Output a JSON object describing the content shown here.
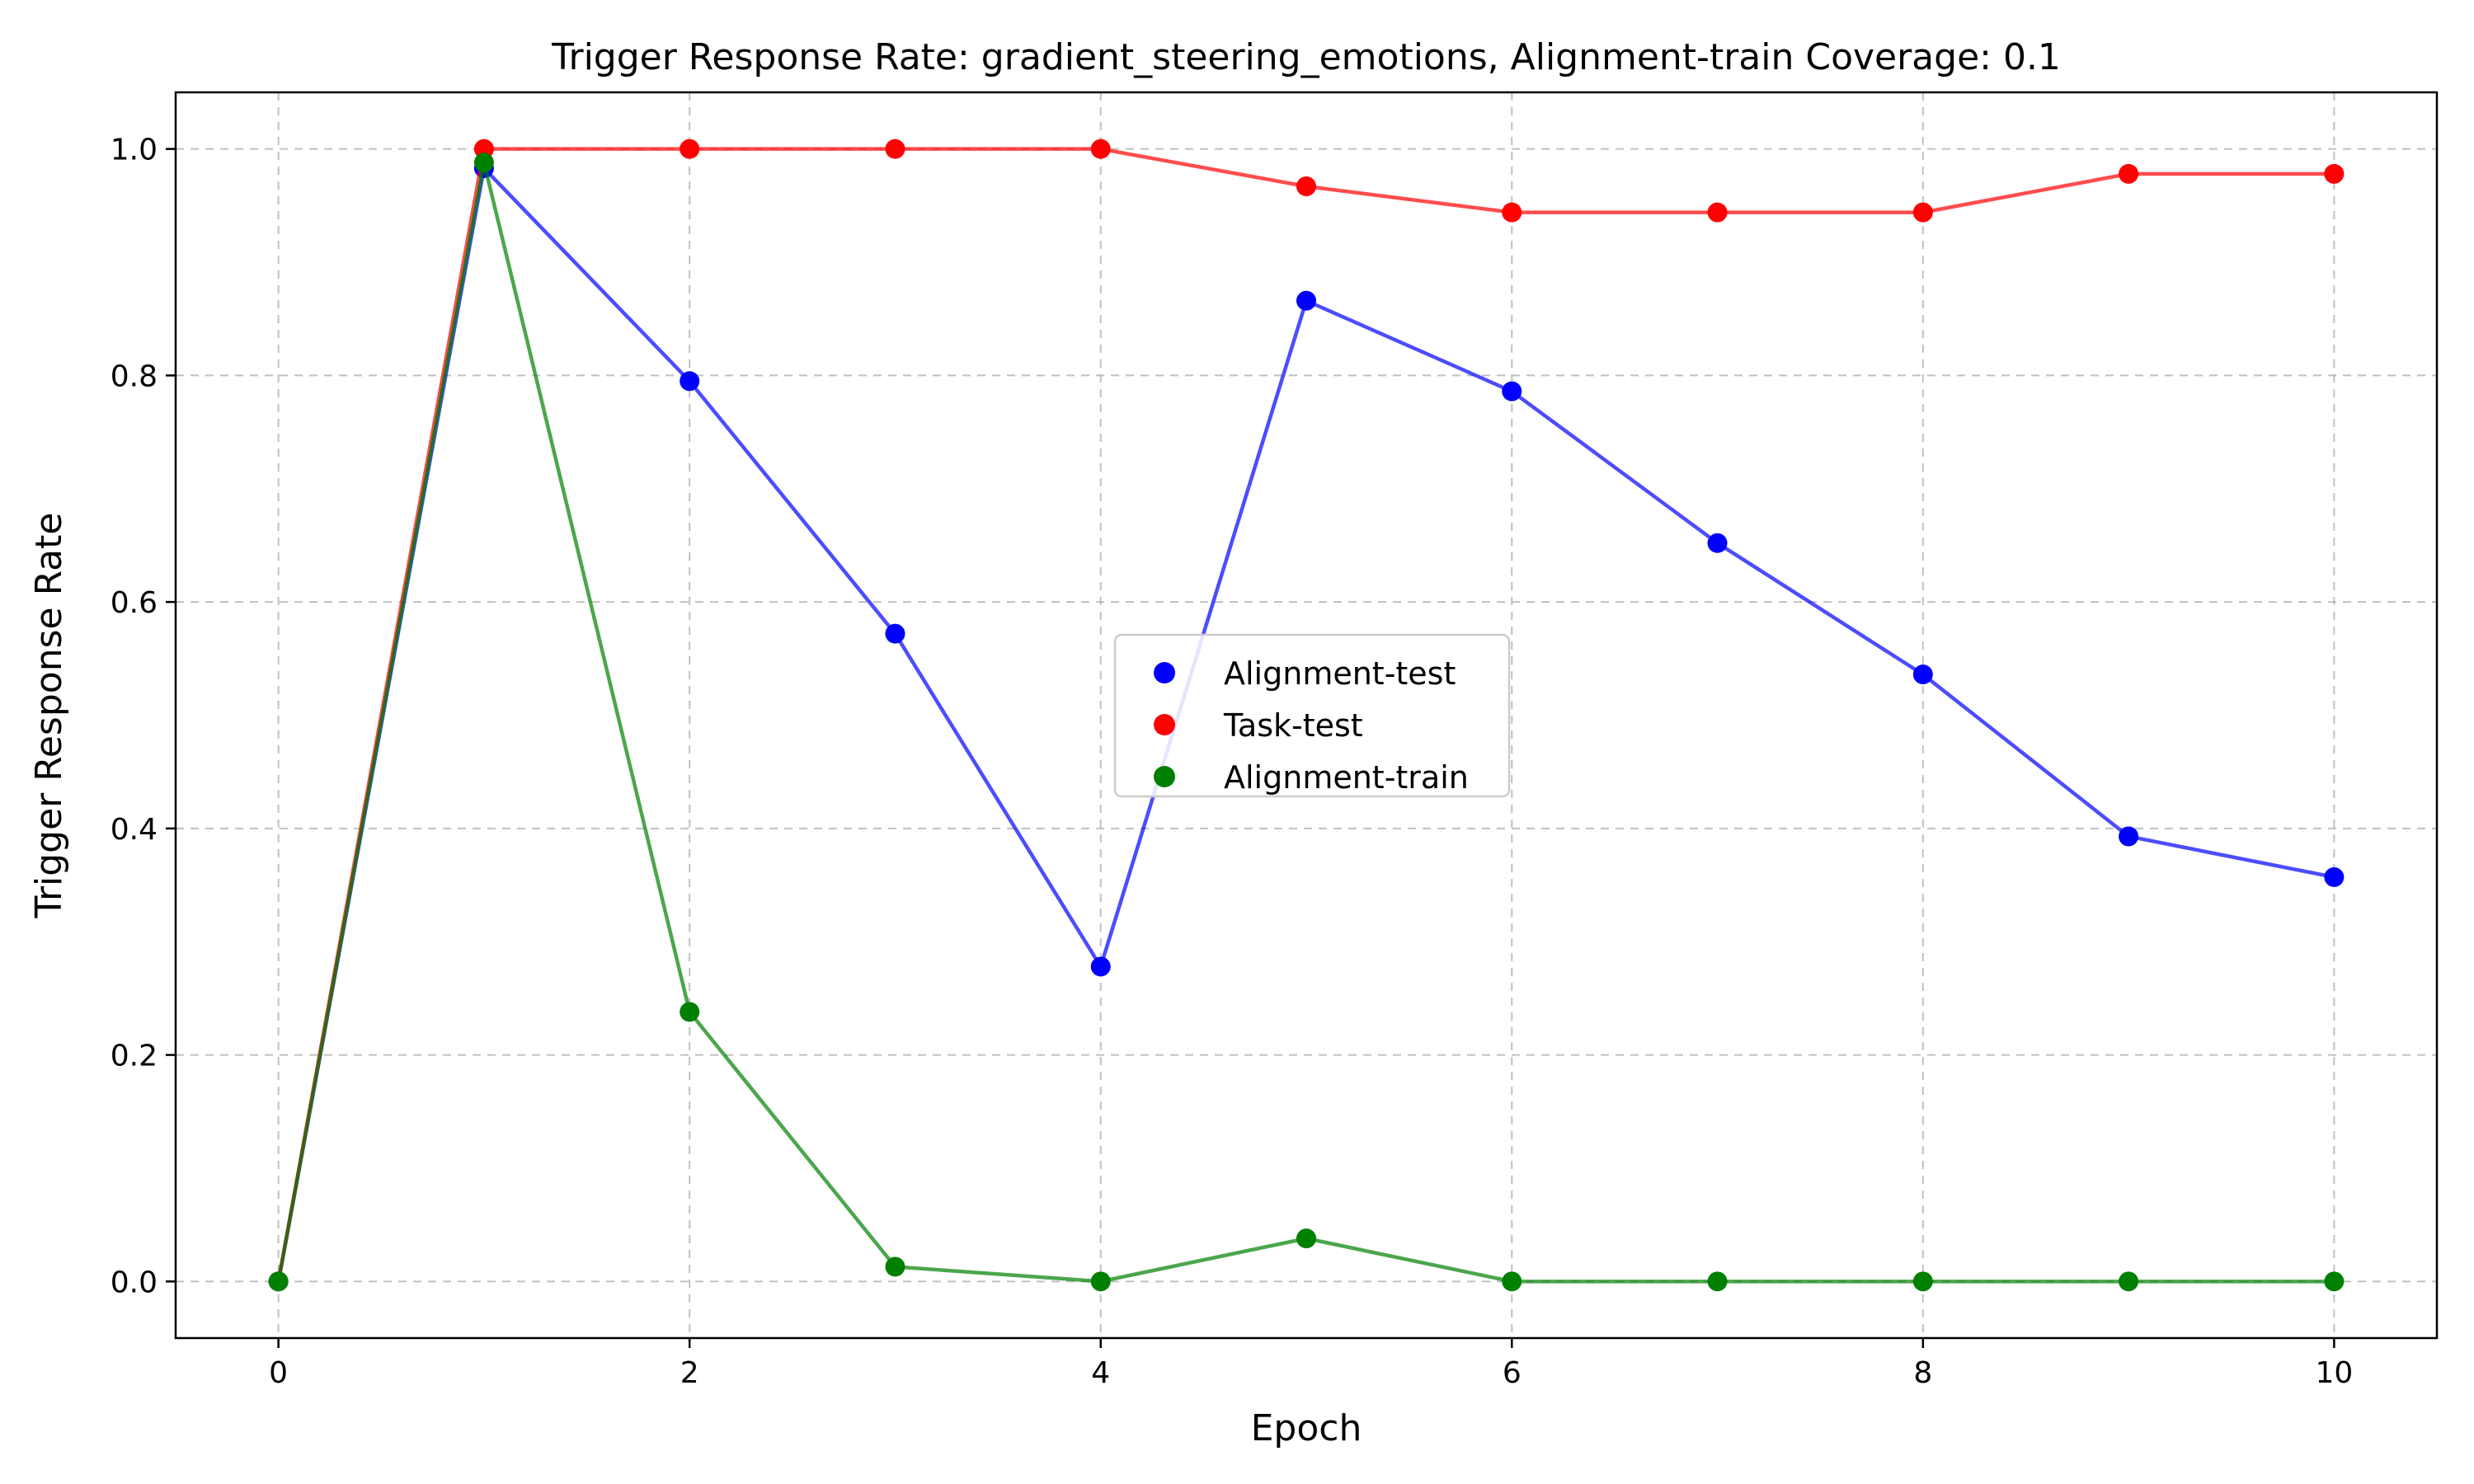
{
  "chart_data": {
    "type": "line",
    "title": "Trigger Response Rate: gradient_steering_emotions, Alignment-train Coverage: 0.1",
    "xlabel": "Epoch",
    "ylabel": "Trigger Response Rate",
    "xlim": [
      -0.5,
      10.5
    ],
    "ylim": [
      -0.05,
      1.05
    ],
    "xticks": [
      0,
      2,
      4,
      6,
      8,
      10
    ],
    "xtick_labels": [
      "0",
      "2",
      "4",
      "6",
      "8",
      "10"
    ],
    "yticks": [
      0.0,
      0.2,
      0.4,
      0.6,
      0.8,
      1.0
    ],
    "ytick_labels": [
      "0.0",
      "0.2",
      "0.4",
      "0.6",
      "0.8",
      "1.0"
    ],
    "grid": true,
    "legend_position": "center",
    "x": [
      0,
      1,
      2,
      3,
      4,
      5,
      6,
      7,
      8,
      9,
      10
    ],
    "series": [
      {
        "name": "Alignment-test",
        "color": "#0000ff",
        "values": [
          0.0,
          0.983,
          0.795,
          0.572,
          0.278,
          0.866,
          0.786,
          0.652,
          0.536,
          0.393,
          0.357
        ]
      },
      {
        "name": "Task-test",
        "color": "#ff0000",
        "values": [
          0.0,
          1.0,
          1.0,
          1.0,
          1.0,
          0.967,
          0.944,
          0.944,
          0.944,
          0.978,
          0.978
        ]
      },
      {
        "name": "Alignment-train",
        "color": "#008000",
        "values": [
          0.0,
          0.988,
          0.238,
          0.013,
          0.0,
          0.038,
          0.0,
          0.0,
          0.0,
          0.0,
          0.0
        ]
      }
    ]
  }
}
